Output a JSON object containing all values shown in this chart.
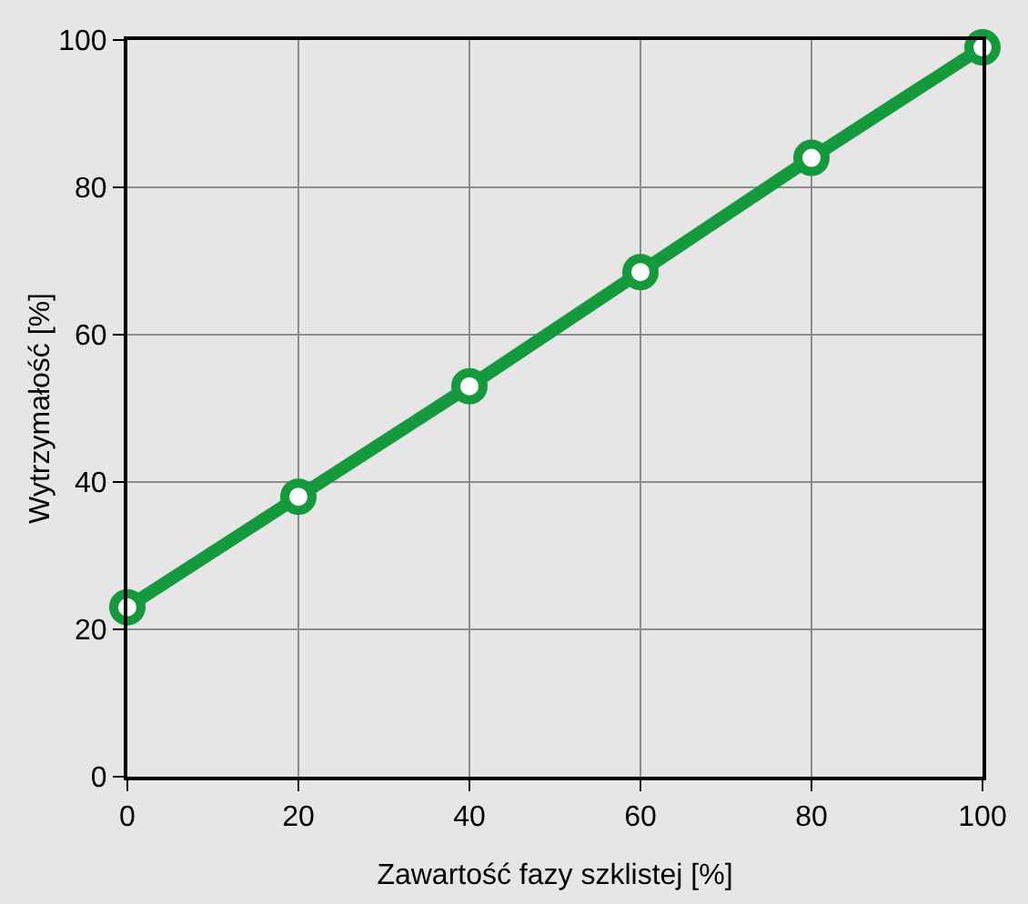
{
  "chart_data": {
    "type": "line",
    "xlabel": "Zawartość fazy szklistej [%]",
    "ylabel": "Wytrzymałość [%]",
    "x": [
      0,
      20,
      40,
      60,
      80,
      100
    ],
    "series": [
      {
        "color": "#14993c",
        "values": [
          23,
          38,
          53,
          68.5,
          84,
          99
        ]
      }
    ],
    "xlim": [
      0,
      100
    ],
    "xticks": [
      0,
      20,
      40,
      60,
      80,
      100
    ],
    "ylim": [
      0,
      100
    ],
    "yticks": [
      0,
      20,
      40,
      60,
      80,
      100
    ],
    "grid": true,
    "marker": "circle",
    "line_style": "solid"
  }
}
